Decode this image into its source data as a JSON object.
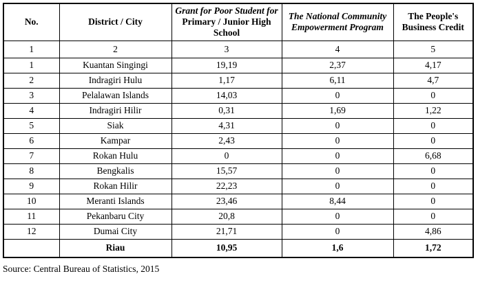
{
  "table": {
    "headers": {
      "no": "No.",
      "district": "District / City",
      "grant_italic": "Grant for Poor Student for",
      "grant_regular": "Primary / Junior High School",
      "empowerment": "The National Community Empowerment Program",
      "credit": "The People's Business Credit"
    },
    "column_numbers": [
      "1",
      "2",
      "3",
      "4",
      "5"
    ],
    "rows": [
      [
        "1",
        "Kuantan Singingi",
        "19,19",
        "2,37",
        "4,17"
      ],
      [
        "2",
        "Indragiri Hulu",
        "1,17",
        "6,11",
        "4,7"
      ],
      [
        "3",
        "Pelalawan Islands",
        "14,03",
        "0",
        "0"
      ],
      [
        "4",
        "Indragiri Hilir",
        "0,31",
        "1,69",
        "1,22"
      ],
      [
        "5",
        "Siak",
        "4,31",
        "0",
        "0"
      ],
      [
        "6",
        "Kampar",
        "2,43",
        "0",
        "0"
      ],
      [
        "7",
        "Rokan Hulu",
        "0",
        "0",
        "6,68"
      ],
      [
        "8",
        "Bengkalis",
        "15,57",
        "0",
        "0"
      ],
      [
        "9",
        "Rokan Hilir",
        "22,23",
        "0",
        "0"
      ],
      [
        "10",
        "Meranti Islands",
        "23,46",
        "8,44",
        "0"
      ],
      [
        "11",
        "Pekanbaru City",
        "20,8",
        "0",
        "0"
      ],
      [
        "12",
        "Dumai City",
        "21,71",
        "0",
        "4,86"
      ]
    ],
    "total": {
      "no": "",
      "label": "Riau",
      "grant": "10,95",
      "empowerment": "1,6",
      "credit": "1,72"
    }
  },
  "source": "Source: Central Bureau of Statistics, 2015",
  "colors": {
    "border": "#000000",
    "text": "#000000",
    "background": "#ffffff"
  }
}
